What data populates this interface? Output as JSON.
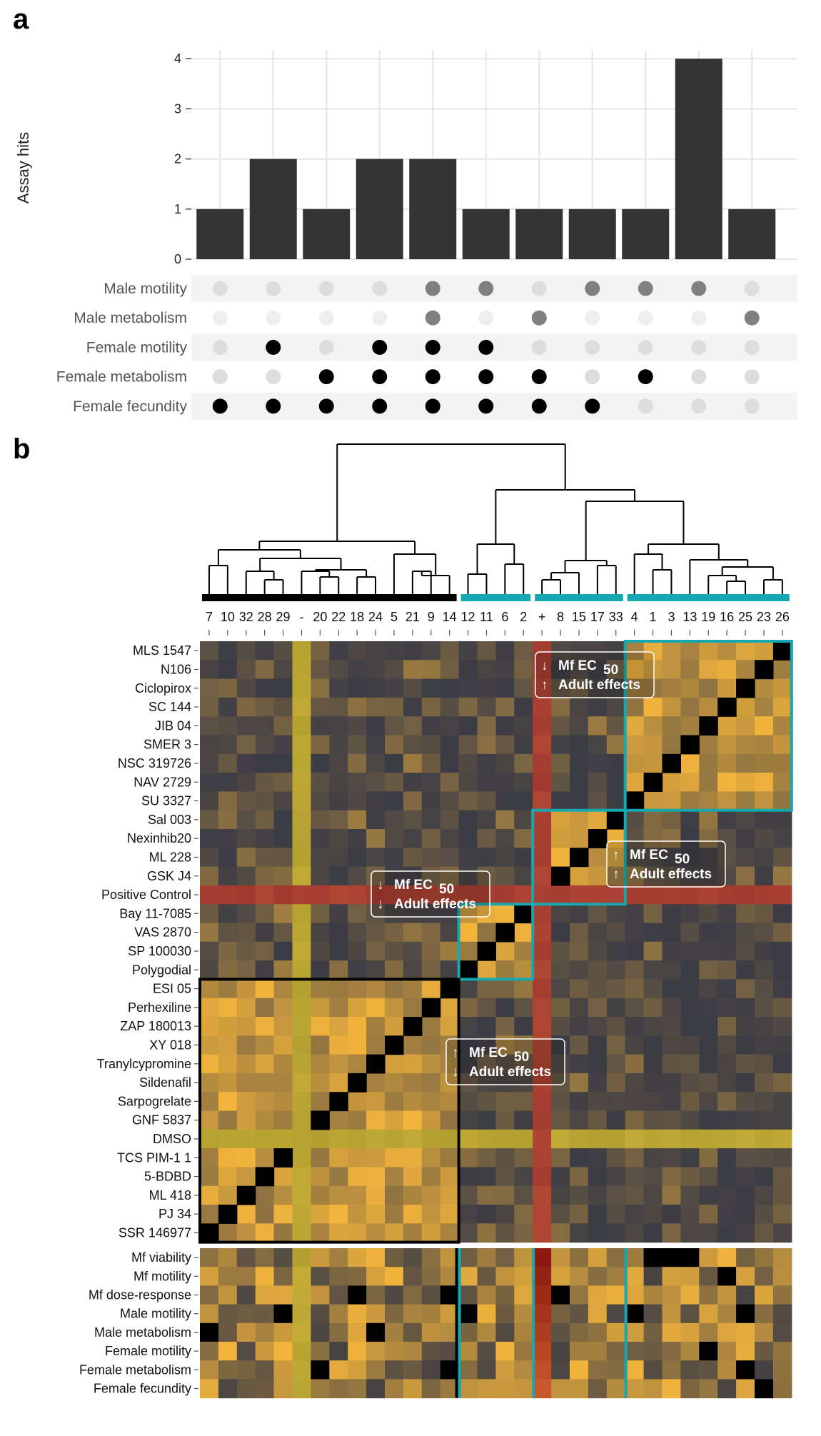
{
  "panel_a": {
    "letter": "a"
  },
  "panel_b": {
    "letter": "b"
  },
  "chart_data": [
    {
      "type": "bar",
      "subtype": "upset",
      "ylabel": "Assay hits",
      "ylim": [
        0,
        4.2
      ],
      "yticks": [
        "0",
        "1",
        "2",
        "3",
        "4"
      ],
      "values": [
        1,
        2,
        1,
        2,
        2,
        1,
        1,
        1,
        1,
        4,
        1
      ],
      "colors": {
        "bar": "#333333",
        "on": "#000000",
        "male_on": "#808080",
        "off": "#dddddd",
        "off_light": "#eeeeee",
        "band": "#f3f3f3",
        "grid": "#e6e6e6"
      },
      "sets": [
        "Male motility",
        "Male metabolism",
        "Female motility",
        "Female metabolism",
        "Female fecundity"
      ],
      "matrix": [
        [
          0,
          0,
          0,
          0,
          1,
          1,
          0,
          1,
          1,
          1,
          0
        ],
        [
          0,
          0,
          0,
          0,
          1,
          0,
          1,
          0,
          0,
          0,
          1
        ],
        [
          0,
          1,
          0,
          1,
          1,
          1,
          0,
          0,
          0,
          0,
          0
        ],
        [
          0,
          0,
          1,
          1,
          1,
          1,
          1,
          0,
          1,
          0,
          0
        ],
        [
          1,
          1,
          1,
          1,
          1,
          1,
          1,
          1,
          0,
          0,
          0
        ]
      ]
    },
    {
      "type": "heatmap",
      "col_labels": [
        "7",
        "10",
        "32",
        "28",
        "29",
        "-",
        "20",
        "22",
        "18",
        "24",
        "5",
        "21",
        "9",
        "14",
        "12",
        "11",
        "6",
        "2",
        "+",
        "8",
        "15",
        "17",
        "33",
        "4",
        "1",
        "3",
        "13",
        "19",
        "16",
        "25",
        "23",
        "26"
      ],
      "row_labels": [
        "MLS 1547",
        "N106",
        "Ciclopirox",
        "SC 144",
        "JIB 04",
        "SMER 3",
        "NSC 319726",
        "NAV 2729",
        "SU 3327",
        "Sal 003",
        "Nexinhib20",
        "ML 228",
        "GSK J4",
        "Positive Control",
        "Bay 11-7085",
        "VAS 2870",
        "SP 100030",
        "Polygodial",
        "ESI 05",
        "Perhexiline",
        "ZAP 180013",
        "XY 018",
        "Tranylcypromine",
        "Sildenafil",
        "Sarpogrelate",
        "GNF 5837",
        "DMSO",
        "TCS PIM-1 1",
        "5-BDBD",
        "ML 418",
        "PJ 34",
        "SSR 146977"
      ],
      "row_clusters": [
        0,
        0,
        0,
        0,
        0,
        0,
        0,
        0,
        0,
        1,
        1,
        1,
        1,
        1,
        2,
        2,
        2,
        2,
        3,
        3,
        3,
        3,
        3,
        3,
        3,
        3,
        3,
        3,
        3,
        3,
        3,
        3
      ],
      "col_clusters": [
        3,
        3,
        3,
        3,
        3,
        3,
        3,
        3,
        3,
        3,
        3,
        3,
        3,
        3,
        2,
        2,
        2,
        2,
        1,
        1,
        1,
        1,
        1,
        0,
        0,
        0,
        0,
        0,
        0,
        0,
        0,
        0
      ],
      "annotations": [
        {
          "arrow1": "↓",
          "line1": "Mf EC",
          "sub1": "50",
          "arrow2": "↑",
          "line2": "Adult effects"
        },
        {
          "arrow1": "↑",
          "line1": "Mf EC",
          "sub1": "50",
          "arrow2": "↑",
          "line2": "Adult effects"
        },
        {
          "arrow1": "↓",
          "line1": "Mf EC",
          "sub1": "50",
          "arrow2": "↓",
          "line2": "Adult effects"
        },
        {
          "arrow1": "↑",
          "line1": "Mf EC",
          "sub1": "50",
          "arrow2": "↓",
          "line2": "Adult effects"
        }
      ],
      "colors": {
        "low": "#3c3c45",
        "high": "#f4b53c",
        "positive": "#a33a30",
        "dmso": "#b4a030",
        "diag": "#000000",
        "cluster_box": "#16a8b0",
        "dark_box": "#000000"
      }
    },
    {
      "type": "heatmap",
      "row_labels": [
        "Mf viability",
        "Mf motility",
        "Mf dose-response ",
        "Male motility",
        "Male metabolism",
        "Female motility",
        "Female metabolism",
        "Female fecundity"
      ]
    }
  ]
}
